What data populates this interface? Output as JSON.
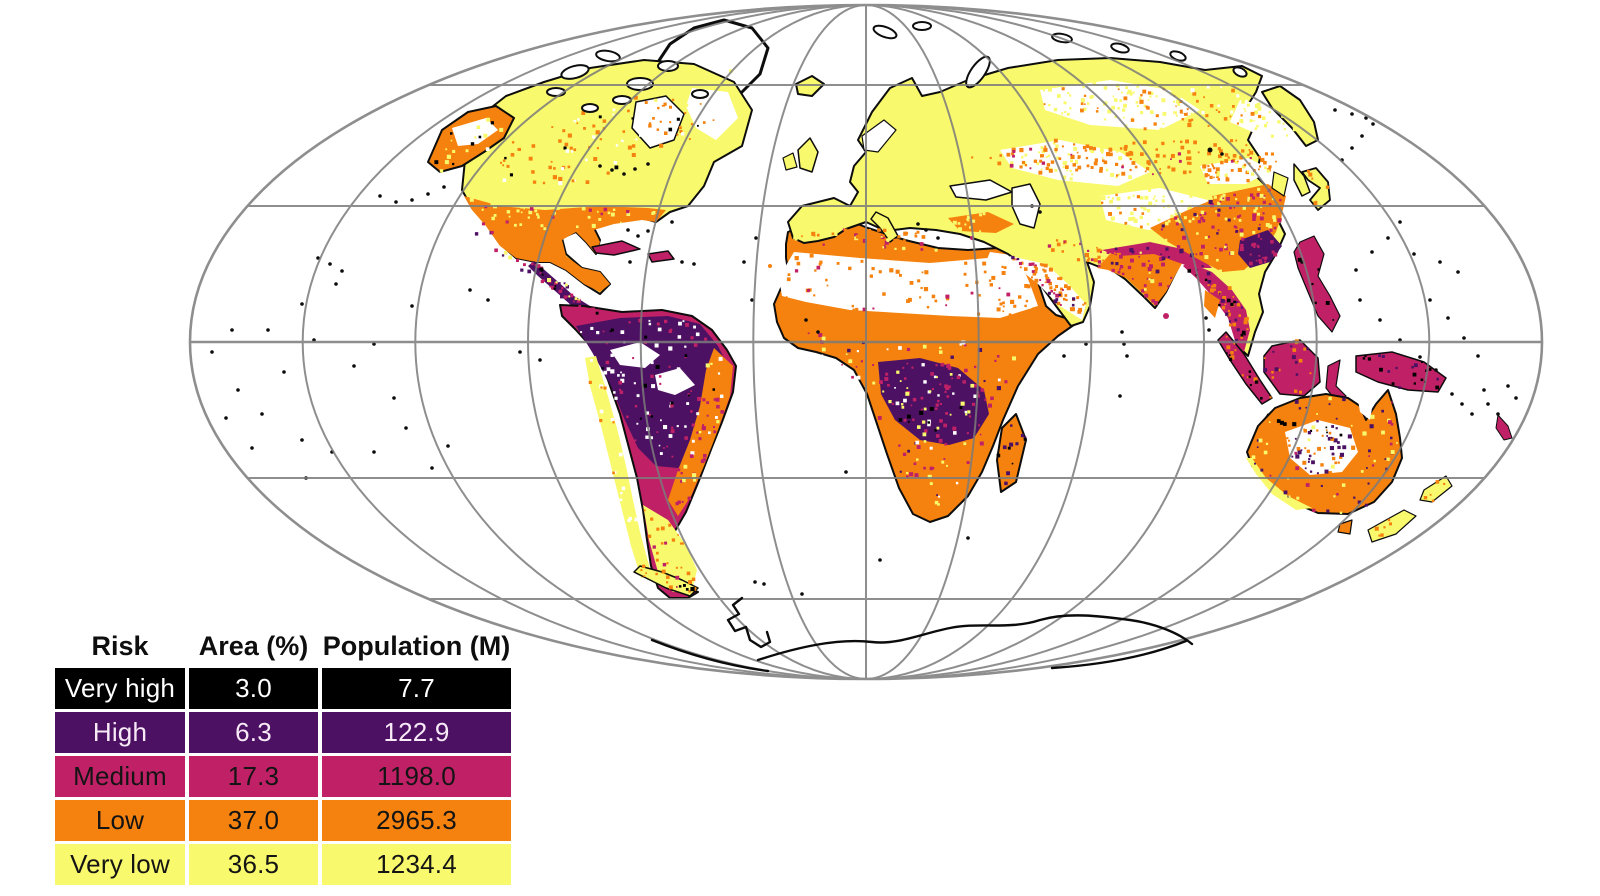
{
  "table": {
    "headers": [
      "Risk",
      "Area (%)",
      "Population (M)"
    ],
    "rows": [
      {
        "risk": "Very high",
        "area": "3.0",
        "population": "7.7",
        "color": "#000000",
        "text_color": "#ffffff"
      },
      {
        "risk": "High",
        "area": "6.3",
        "population": "122.9",
        "color": "#4d1164",
        "text_color": "#f7eaf6"
      },
      {
        "risk": "Medium",
        "area": "17.3",
        "population": "1198.0",
        "color": "#c02166",
        "text_color": "#141414"
      },
      {
        "risk": "Low",
        "area": "37.0",
        "population": "2965.3",
        "color": "#f5820e",
        "text_color": "#141414"
      },
      {
        "risk": "Very low",
        "area": "36.5",
        "population": "1234.4",
        "color": "#f9f96d",
        "text_color": "#141414"
      }
    ]
  },
  "map": {
    "projection": "mollweide",
    "graticule_color": "#7b7b7b",
    "coast_color": "#0d0d0d",
    "ocean_color": "#ffffff",
    "risk_colors": {
      "very_high": "#000000",
      "high": "#4d1164",
      "medium": "#c02166",
      "low": "#f5820e",
      "very_low": "#f9f96d"
    }
  },
  "chart_data": {
    "type": "table",
    "title": "Global risk map with area and population shares by risk class",
    "columns": [
      "Risk",
      "Area (%)",
      "Population (M)"
    ],
    "rows": [
      [
        "Very high",
        3.0,
        7.7
      ],
      [
        "High",
        6.3,
        122.9
      ],
      [
        "Medium",
        17.3,
        1198.0
      ],
      [
        "Low",
        37.0,
        2965.3
      ],
      [
        "Very low",
        36.5,
        1234.4
      ]
    ],
    "legend_position": "bottom-left",
    "grid": true
  }
}
